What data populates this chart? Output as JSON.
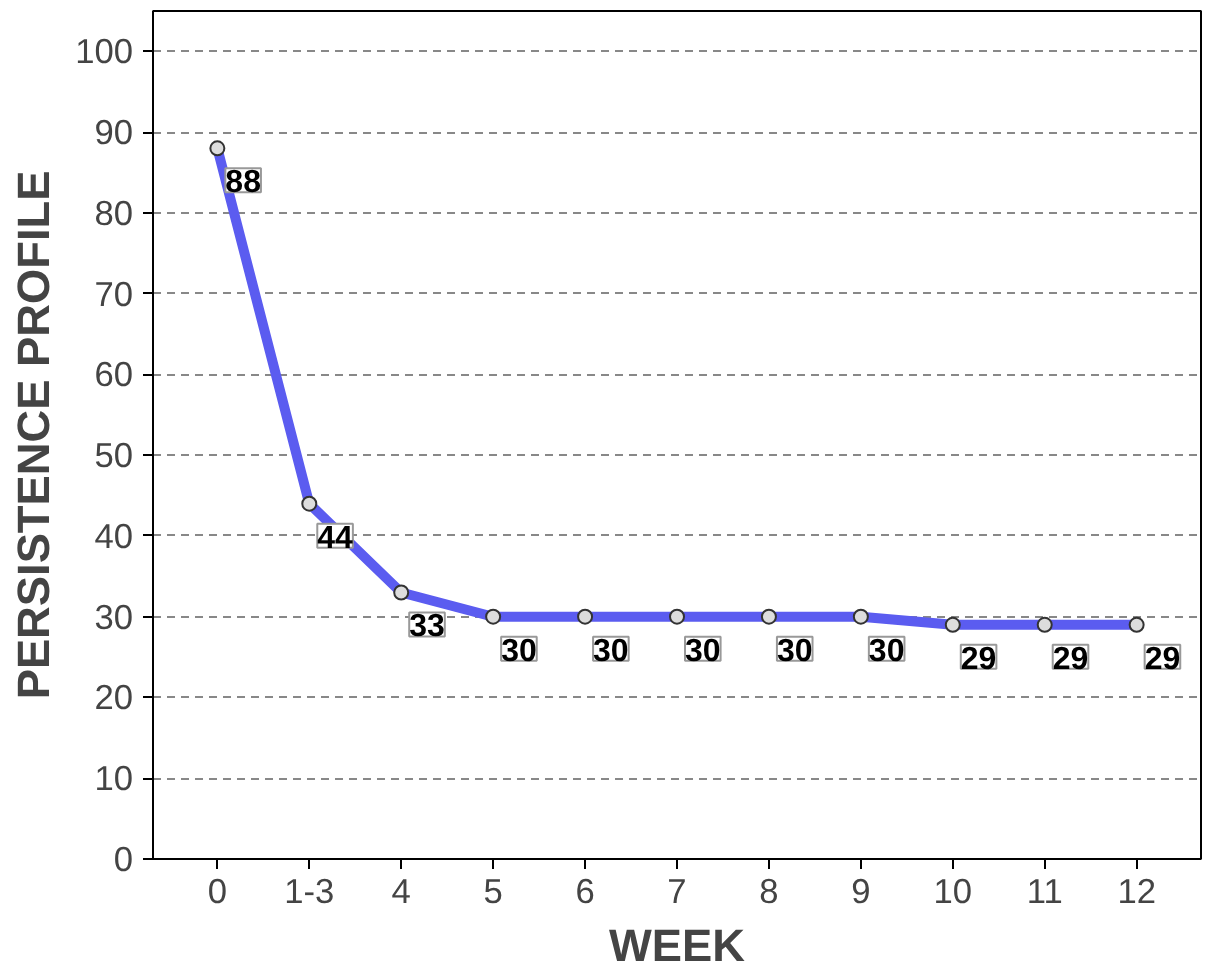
{
  "chart_data": {
    "type": "line",
    "xlabel": "WEEK",
    "ylabel": "PERSISTENCE PROFILE",
    "categories": [
      "0",
      "1-3",
      "4",
      "5",
      "6",
      "7",
      "8",
      "9",
      "10",
      "11",
      "12"
    ],
    "series": [
      {
        "color": "#5b5cf0",
        "values": [
          88,
          44,
          33,
          30,
          30,
          30,
          30,
          30,
          29,
          29,
          29
        ]
      }
    ],
    "ylim": [
      0,
      105
    ],
    "yticks": [
      0,
      10,
      20,
      30,
      40,
      50,
      60,
      70,
      80,
      90,
      100
    ],
    "grid": "y",
    "marker": "circle",
    "line_style": "solid",
    "data_labels": true
  }
}
